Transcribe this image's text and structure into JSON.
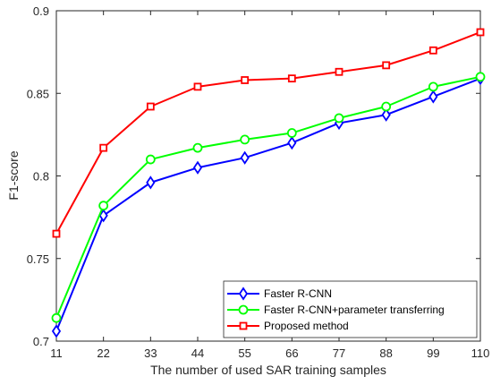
{
  "chart_data": {
    "type": "line",
    "title": "",
    "xlabel": "The number of used SAR training samples",
    "ylabel": "F1-score",
    "categories": [
      "11",
      "22",
      "33",
      "44",
      "55",
      "66",
      "77",
      "88",
      "99",
      "110"
    ],
    "x": [
      11,
      22,
      33,
      44,
      55,
      66,
      77,
      88,
      99,
      110
    ],
    "xlim": [
      11,
      110
    ],
    "ylim": [
      0.7,
      0.9
    ],
    "yticks": [
      "0.7",
      "0.75",
      "0.8",
      "0.85",
      "0.9"
    ],
    "grid": false,
    "legend_position": "bottom-right",
    "series": [
      {
        "name": "Faster R-CNN",
        "color": "#0000ff",
        "marker": "diamond",
        "values": [
          0.706,
          0.776,
          0.796,
          0.805,
          0.811,
          0.82,
          0.832,
          0.837,
          0.848,
          0.859
        ]
      },
      {
        "name": "Faster R-CNN+parameter transferring",
        "color": "#00ff00",
        "marker": "circle",
        "values": [
          0.714,
          0.782,
          0.81,
          0.817,
          0.822,
          0.826,
          0.835,
          0.842,
          0.854,
          0.86
        ]
      },
      {
        "name": "Proposed method",
        "color": "#ff0000",
        "marker": "square",
        "values": [
          0.765,
          0.817,
          0.842,
          0.854,
          0.858,
          0.859,
          0.863,
          0.867,
          0.876,
          0.887
        ]
      }
    ]
  }
}
